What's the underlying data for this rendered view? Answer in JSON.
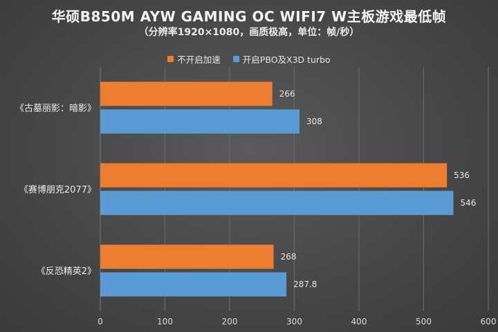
{
  "chart_data": {
    "type": "bar",
    "orientation": "horizontal",
    "title": "华硕B850M AYW GAMING OC WIFI7 W主板游戏最低帧",
    "subtitle": "（分辨率1920×1080，画质极高，单位：帧/秒）",
    "categories": [
      "《古墓丽影：暗影》",
      "《赛博朋克2077》",
      "《反恐精英2》"
    ],
    "series": [
      {
        "name": "不开启加速",
        "color": "#ED7D31",
        "values": [
          266,
          536,
          268
        ],
        "labels": [
          "266",
          "536",
          "268"
        ]
      },
      {
        "name": "开启PBO及X3D turbo",
        "color": "#5B9BD5",
        "values": [
          308,
          546,
          287.8
        ],
        "labels": [
          "308",
          "546",
          "287.8"
        ]
      }
    ],
    "xlim": [
      0,
      600
    ],
    "xticks": [
      0,
      100,
      200,
      300,
      400,
      500,
      600
    ],
    "grid": true,
    "legend_position": "top"
  }
}
